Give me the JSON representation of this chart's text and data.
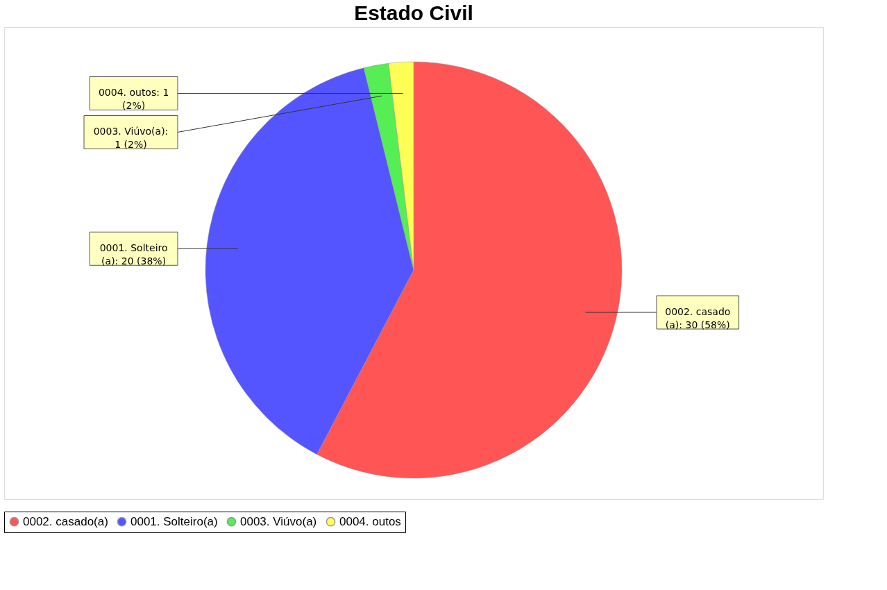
{
  "chart_data": {
    "type": "pie",
    "title": "Estado Civil",
    "categories": [
      "0002. casado(a)",
      "0001. Solteiro(a)",
      "0003. Viúvo(a)",
      "0004. outos"
    ],
    "values": [
      30,
      20,
      1,
      1
    ],
    "colors": [
      "#ff5555",
      "#5555ff",
      "#55ee55",
      "#ffff55"
    ],
    "value_labels": [
      "0002. casado\n(a): 30 (58%)",
      "0001. Solteiro\n(a): 20 (38%)",
      "0003. Viúvo(a):\n1 (2%)",
      "0004. outos: 1\n(2%)"
    ],
    "legend": "bottom"
  }
}
